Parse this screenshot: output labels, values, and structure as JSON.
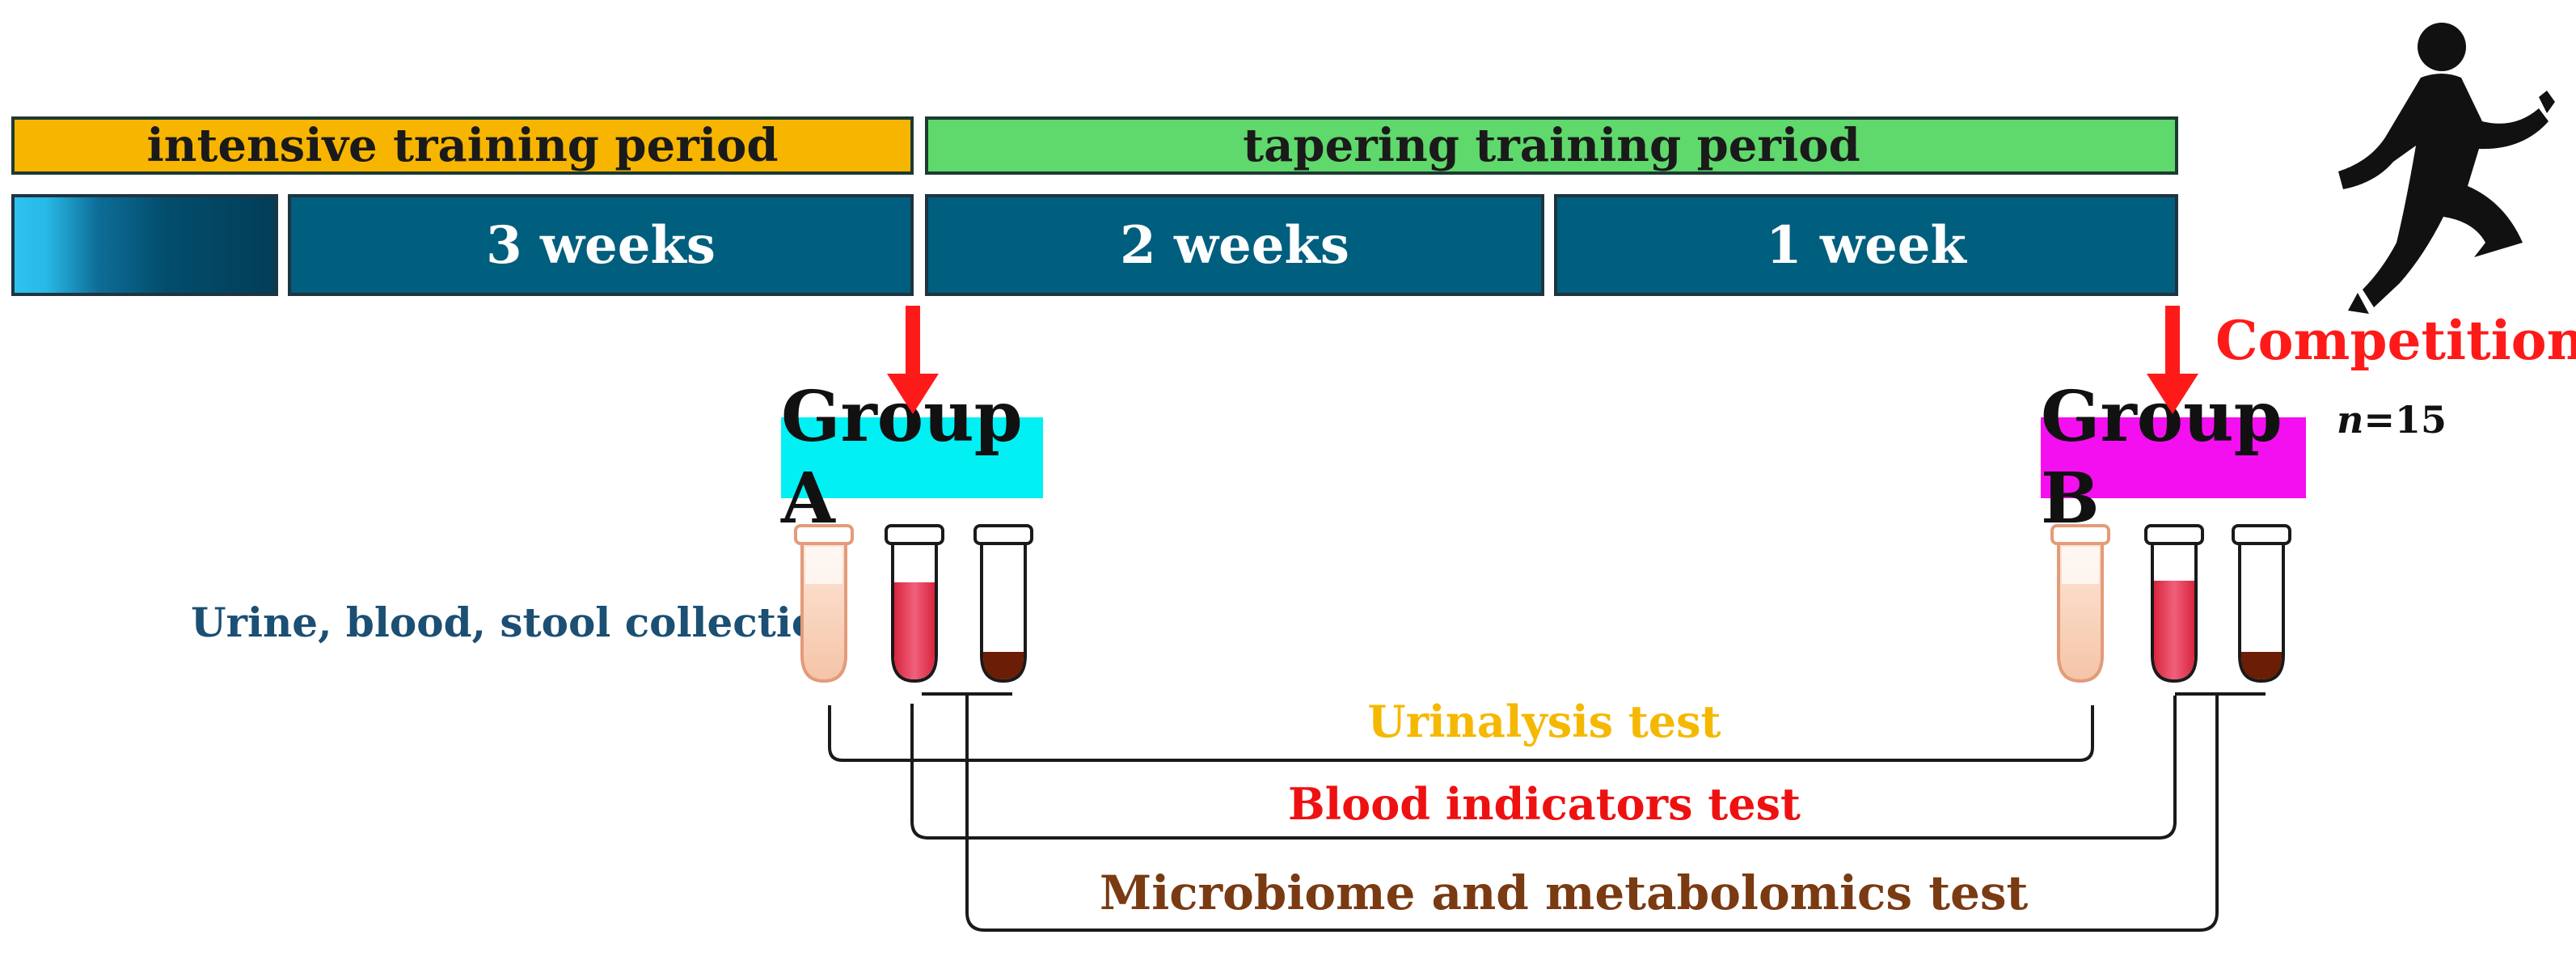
{
  "periods": {
    "intensive": "intensive training period",
    "tapering": "tapering training period"
  },
  "weeks": {
    "w1": "3 weeks",
    "w2": "2 weeks",
    "w3": "1 week"
  },
  "groups": {
    "a": "Group A",
    "b": "Group B"
  },
  "collection_label": "Urine, blood, stool collection",
  "tests": {
    "urinalysis": "Urinalysis test",
    "blood": "Blood indicators test",
    "microbiome": "Microbiome and metabolomics test"
  },
  "competition": {
    "label": "Competition",
    "n_symbol": "n",
    "n_value": "=15"
  },
  "colors": {
    "intensive": "#f7b500",
    "tapering": "#5fd86c",
    "weeks": "#005e7e",
    "group_a": "#00f0f4",
    "group_b": "#f40ff0",
    "arrow": "#ff1a1a",
    "urine": "#f5b800",
    "blood": "#ee1111",
    "microbiome": "#7a3a12"
  }
}
